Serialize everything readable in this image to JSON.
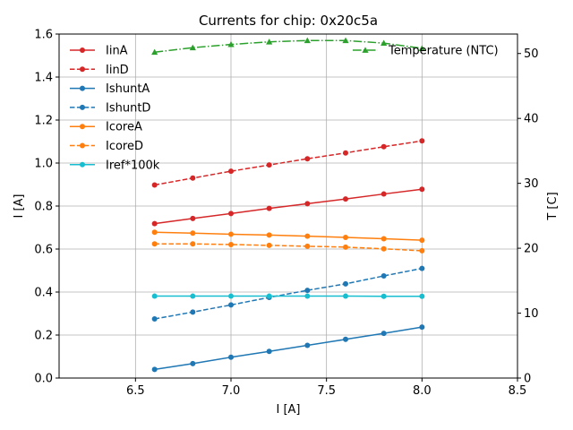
{
  "chart_data": {
    "type": "line",
    "title": "Currents for chip: 0x20c5a",
    "xlabel": "I [A]",
    "ylabel": "I [A]",
    "y2label": "T [C]",
    "xlim": [
      6.1,
      8.5
    ],
    "ylim": [
      0.0,
      1.6
    ],
    "y2lim": [
      0,
      53
    ],
    "xticks": [
      6.5,
      7.0,
      7.5,
      8.0,
      8.5
    ],
    "xtick_labels": [
      "6.5",
      "7.0",
      "7.5",
      "8.0",
      "8.5"
    ],
    "yticks": [
      0.0,
      0.2,
      0.4,
      0.6,
      0.8,
      1.0,
      1.2,
      1.4,
      1.6
    ],
    "ytick_labels": [
      "0.0",
      "0.2",
      "0.4",
      "0.6",
      "0.8",
      "1.0",
      "1.2",
      "1.4",
      "1.6"
    ],
    "y2ticks": [
      0,
      10,
      20,
      30,
      40,
      50
    ],
    "y2tick_labels": [
      "0",
      "10",
      "20",
      "30",
      "40",
      "50"
    ],
    "grid": true,
    "x": [
      6.6,
      6.8,
      7.0,
      7.2,
      7.4,
      7.6,
      7.8,
      8.0
    ],
    "series": [
      {
        "name": "IinA",
        "axis": "left",
        "color": "#d62728",
        "dash": "solid",
        "marker": "circle",
        "values": [
          0.718,
          0.742,
          0.765,
          0.789,
          0.811,
          0.833,
          0.856,
          0.878
        ]
      },
      {
        "name": "IinD",
        "axis": "left",
        "color": "#d62728",
        "dash": "dashed",
        "marker": "circle",
        "values": [
          0.898,
          0.93,
          0.962,
          0.991,
          1.02,
          1.047,
          1.076,
          1.103
        ]
      },
      {
        "name": "IshuntA",
        "axis": "left",
        "color": "#1f77b4",
        "dash": "solid",
        "marker": "circle",
        "values": [
          0.04,
          0.067,
          0.097,
          0.124,
          0.152,
          0.18,
          0.208,
          0.237
        ]
      },
      {
        "name": "IshuntD",
        "axis": "left",
        "color": "#1f77b4",
        "dash": "dashed",
        "marker": "circle",
        "values": [
          0.275,
          0.307,
          0.34,
          0.375,
          0.408,
          0.438,
          0.475,
          0.51
        ]
      },
      {
        "name": "IcoreA",
        "axis": "left",
        "color": "#ff7f0e",
        "dash": "solid",
        "marker": "circle",
        "values": [
          0.678,
          0.674,
          0.669,
          0.665,
          0.66,
          0.654,
          0.648,
          0.641
        ]
      },
      {
        "name": "IcoreD",
        "axis": "left",
        "color": "#ff7f0e",
        "dash": "dashed",
        "marker": "circle",
        "values": [
          0.624,
          0.624,
          0.621,
          0.617,
          0.613,
          0.609,
          0.601,
          0.592
        ]
      },
      {
        "name": "Iref*100k",
        "axis": "left",
        "color": "#17becf",
        "dash": "solid",
        "marker": "circle",
        "values": [
          0.381,
          0.381,
          0.381,
          0.381,
          0.381,
          0.381,
          0.38,
          0.38
        ]
      },
      {
        "name": "Temperature (NTC)",
        "axis": "right",
        "color": "#2ca02c",
        "dash": "dashdot",
        "marker": "triangle",
        "values": [
          50.2,
          50.9,
          51.4,
          51.8,
          52.0,
          52.0,
          51.6,
          50.8
        ]
      }
    ],
    "legend_left": [
      "IinA",
      "IinD",
      "IshuntA",
      "IshuntD",
      "IcoreA",
      "IcoreD",
      "Iref*100k"
    ],
    "legend_right": [
      "Temperature (NTC)"
    ],
    "legend_placement": "top-left and top-right"
  }
}
